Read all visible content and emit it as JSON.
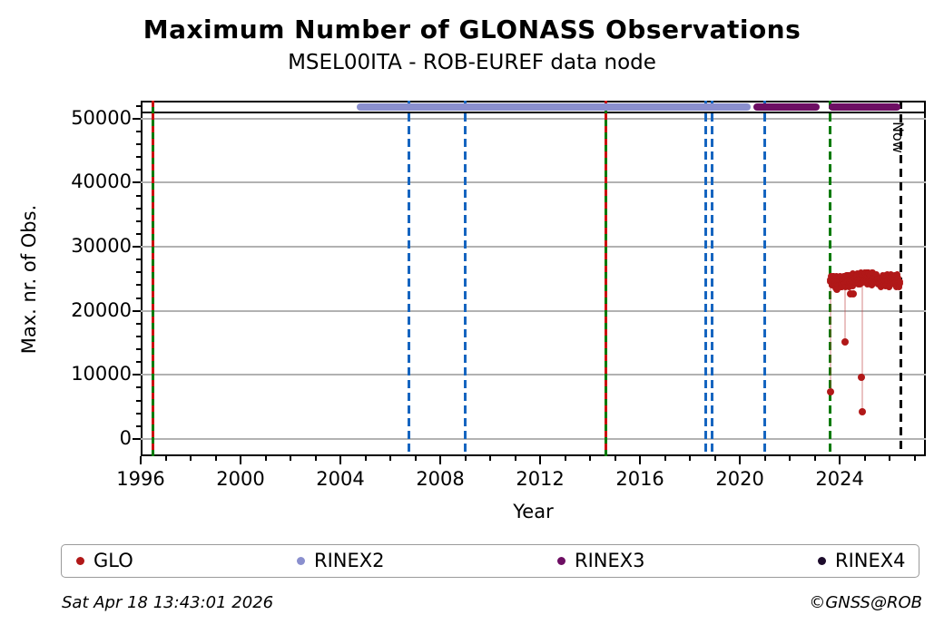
{
  "header": {
    "title": "Maximum Number of GLONASS Observations",
    "subtitle": "MSEL00ITA - ROB-EUREF data node"
  },
  "footer": {
    "timestamp": "Sat Apr 18 13:43:01 2026",
    "credit": "©GNSS@ROB"
  },
  "legend": [
    {
      "label": "GLO",
      "color": "#b11818"
    },
    {
      "label": "RINEX2",
      "color": "#8a8fce"
    },
    {
      "label": "RINEX3",
      "color": "#6d0e63"
    },
    {
      "label": "RINEX4",
      "color": "#1c0b2b"
    }
  ],
  "chart_data": {
    "type": "scatter",
    "title": "Maximum Number of GLONASS Observations",
    "subtitle": "MSEL00ITA - ROB-EUREF data node",
    "xlabel": "Year",
    "ylabel": "Max. nr. of Obs.",
    "xlim": [
      1996.0,
      2027.45
    ],
    "ylim": [
      -2700,
      52800
    ],
    "x_major_ticks": [
      1996,
      2000,
      2004,
      2008,
      2012,
      2016,
      2020,
      2024
    ],
    "x_minor_step_years": 1,
    "y_major_ticks": [
      0,
      10000,
      20000,
      30000,
      40000,
      50000
    ],
    "y_minor_step": 2000,
    "grid": "horizontal-only",
    "grid_color": "#b2b2b2",
    "hline": {
      "value": 51000,
      "color": "#000000"
    },
    "now_line": {
      "year": 2026.45,
      "label": "Now",
      "color": "#000000",
      "dash": true
    },
    "event_lines": [
      {
        "year": 1996.49,
        "color": "#007a00",
        "dash": false,
        "overlay_color": "#cc1111"
      },
      {
        "year": 2006.76,
        "color": "#1565c0",
        "dash": true
      },
      {
        "year": 2009.0,
        "color": "#1565c0",
        "dash": true
      },
      {
        "year": 2014.65,
        "color": "#007a00",
        "dash": false,
        "overlay_color": "#cc1111"
      },
      {
        "year": 2018.65,
        "color": "#1565c0",
        "dash": true
      },
      {
        "year": 2018.9,
        "color": "#1565c0",
        "dash": true
      },
      {
        "year": 2021.0,
        "color": "#1565c0",
        "dash": true
      },
      {
        "year": 2023.6,
        "color": "#007a00",
        "dash": true
      }
    ],
    "availability_bars": [
      {
        "label": "RINEX2",
        "color": "#8a8fce",
        "start": 2004.65,
        "end": 2020.45,
        "value": 51800
      },
      {
        "label": "RINEX3",
        "color": "#6d0e63",
        "start": 2020.55,
        "end": 2023.2,
        "value": 51800
      },
      {
        "label": "RINEX3",
        "color": "#6d0e63",
        "start": 2023.55,
        "end": 2026.45,
        "value": 51800
      }
    ],
    "glo_series": {
      "label": "GLO",
      "color": "#b11818",
      "dense_band": {
        "year_start": 2023.62,
        "year_end": 2026.42,
        "value_min": 23600,
        "value_max": 25900,
        "typical_value": 24800
      },
      "outliers": [
        [
          2023.64,
          7300
        ],
        [
          2024.2,
          15200
        ],
        [
          2024.55,
          22600
        ],
        [
          2024.87,
          9600
        ],
        [
          2024.9,
          4200
        ]
      ],
      "dropline_years": [
        2023.64,
        2024.2,
        2024.9
      ]
    }
  }
}
